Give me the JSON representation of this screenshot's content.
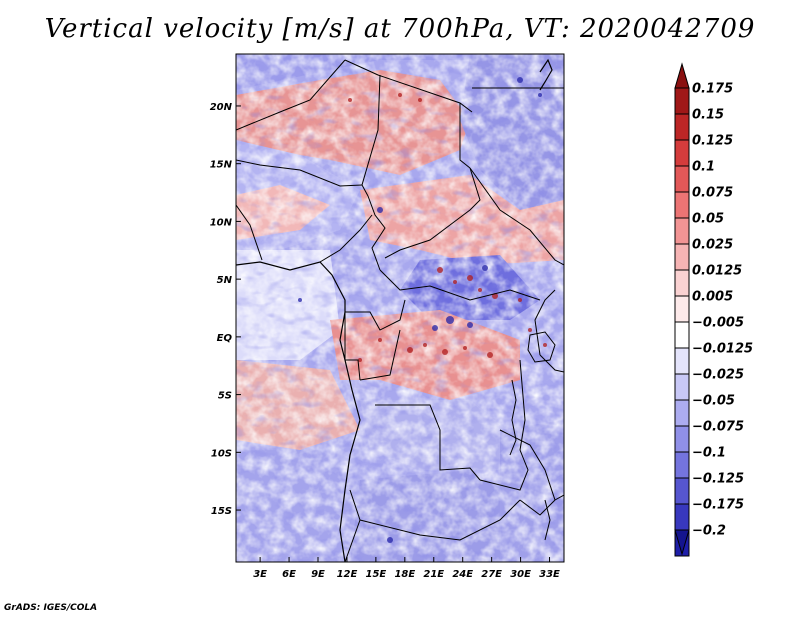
{
  "map": {
    "title": "Vertical velocity [m/s] at 700hPa, VT: 2020042709",
    "variable": "Vertical velocity",
    "units": "m/s",
    "level": "700hPa",
    "valid_time": "2020042709",
    "credit": "GrADS: IGES/COLA",
    "lat_labels": [
      "20N",
      "15N",
      "10N",
      "5N",
      "EQ",
      "5S",
      "10S",
      "15S"
    ],
    "lat_values": [
      20,
      15,
      10,
      5,
      0,
      -5,
      -10,
      -15
    ],
    "lon_labels": [
      "3E",
      "6E",
      "9E",
      "12E",
      "15E",
      "18E",
      "21E",
      "24E",
      "27E",
      "30E",
      "33E"
    ],
    "lon_values": [
      3,
      6,
      9,
      12,
      15,
      18,
      21,
      24,
      27,
      30,
      33
    ],
    "lon_range": [
      0.5,
      34.5
    ],
    "lat_range": [
      -19.5,
      24.5
    ]
  },
  "colorbar": {
    "levels": [
      {
        "label": "0.175",
        "color": "#a01818"
      },
      {
        "label": "0.15",
        "color": "#bc2626"
      },
      {
        "label": "0.125",
        "color": "#d43c3c"
      },
      {
        "label": "0.1",
        "color": "#e25858"
      },
      {
        "label": "0.075",
        "color": "#ec7474"
      },
      {
        "label": "0.05",
        "color": "#f29494"
      },
      {
        "label": "0.025",
        "color": "#f6b4b4"
      },
      {
        "label": "0.0125",
        "color": "#fad2d2"
      },
      {
        "label": "0.005",
        "color": "#fdeaea"
      },
      {
        "label": "−0.005",
        "color": "#ffffff"
      },
      {
        "label": "−0.0125",
        "color": "#e4e4fb"
      },
      {
        "label": "−0.025",
        "color": "#c8c8f6"
      },
      {
        "label": "−0.05",
        "color": "#acacf0"
      },
      {
        "label": "−0.075",
        "color": "#9090e8"
      },
      {
        "label": "−0.1",
        "color": "#7474de"
      },
      {
        "label": "−0.125",
        "color": "#5656d0"
      },
      {
        "label": "−0.175",
        "color": "#3838be"
      },
      {
        "label": "−0.2",
        "color": "#1e1ea8"
      }
    ],
    "top_extend_color": "#8a1010",
    "bottom_extend_color": "#14148e"
  }
}
